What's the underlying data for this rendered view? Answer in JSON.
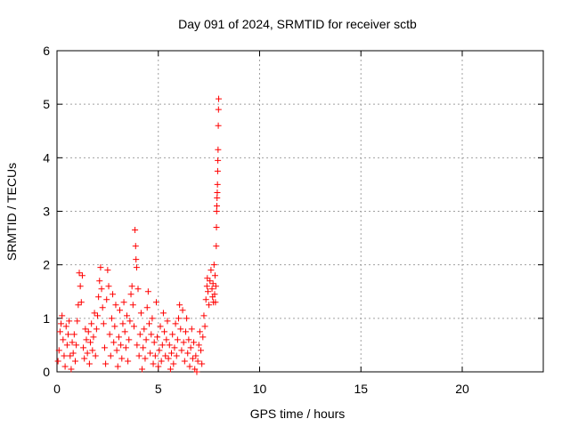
{
  "chart_data": {
    "type": "scatter",
    "title": "Day 091 of 2024, SRMTID for receiver sctb",
    "xlabel": "GPS time / hours",
    "ylabel": "SRMTID / TECUs",
    "xlim": [
      0,
      24
    ],
    "ylim": [
      0,
      6
    ],
    "xticks": [
      0,
      5,
      10,
      15,
      20
    ],
    "yticks": [
      0,
      1,
      2,
      3,
      4,
      5,
      6
    ],
    "grid": true,
    "marker": "+",
    "marker_color": "#ff0000",
    "series": [
      {
        "name": "SRMTID",
        "points": [
          [
            0.05,
            0.2
          ],
          [
            0.1,
            0.4
          ],
          [
            0.15,
            0.75
          ],
          [
            0.2,
            0.9
          ],
          [
            0.25,
            1.05
          ],
          [
            0.3,
            0.6
          ],
          [
            0.35,
            0.3
          ],
          [
            0.4,
            0.1
          ],
          [
            0.45,
            0.85
          ],
          [
            0.5,
            0.5
          ],
          [
            0.55,
            0.7
          ],
          [
            0.6,
            0.95
          ],
          [
            0.65,
            0.3
          ],
          [
            0.7,
            0.05
          ],
          [
            0.75,
            0.55
          ],
          [
            0.8,
            0.35
          ],
          [
            0.85,
            0.7
          ],
          [
            0.9,
            0.2
          ],
          [
            0.95,
            0.5
          ],
          [
            1.0,
            0.95
          ],
          [
            1.05,
            1.25
          ],
          [
            1.1,
            1.85
          ],
          [
            1.15,
            1.6
          ],
          [
            1.2,
            1.3
          ],
          [
            1.25,
            1.8
          ],
          [
            1.3,
            0.45
          ],
          [
            1.35,
            0.25
          ],
          [
            1.4,
            0.8
          ],
          [
            1.45,
            0.6
          ],
          [
            1.5,
            0.35
          ],
          [
            1.55,
            0.75
          ],
          [
            1.6,
            0.15
          ],
          [
            1.65,
            0.55
          ],
          [
            1.7,
            0.9
          ],
          [
            1.75,
            0.4
          ],
          [
            1.8,
            0.65
          ],
          [
            1.85,
            1.1
          ],
          [
            1.9,
            0.3
          ],
          [
            1.95,
            0.8
          ],
          [
            2.0,
            1.05
          ],
          [
            2.05,
            1.4
          ],
          [
            2.1,
            1.7
          ],
          [
            2.15,
            1.95
          ],
          [
            2.2,
            1.55
          ],
          [
            2.25,
            1.2
          ],
          [
            2.3,
            0.9
          ],
          [
            2.35,
            0.45
          ],
          [
            2.4,
            0.15
          ],
          [
            2.45,
            1.35
          ],
          [
            2.5,
            1.9
          ],
          [
            2.55,
            1.6
          ],
          [
            2.6,
            0.7
          ],
          [
            2.65,
            0.3
          ],
          [
            2.7,
            1.0
          ],
          [
            2.75,
            1.45
          ],
          [
            2.8,
            0.55
          ],
          [
            2.85,
            0.85
          ],
          [
            2.9,
            1.25
          ],
          [
            2.95,
            0.4
          ],
          [
            3.0,
            0.1
          ],
          [
            3.05,
            0.65
          ],
          [
            3.1,
            1.15
          ],
          [
            3.15,
            0.5
          ],
          [
            3.2,
            0.25
          ],
          [
            3.25,
            0.9
          ],
          [
            3.3,
            1.3
          ],
          [
            3.35,
            0.75
          ],
          [
            3.4,
            0.45
          ],
          [
            3.45,
            1.05
          ],
          [
            3.5,
            0.2
          ],
          [
            3.55,
            0.6
          ],
          [
            3.6,
            0.95
          ],
          [
            3.65,
            1.45
          ],
          [
            3.7,
            1.6
          ],
          [
            3.75,
            1.25
          ],
          [
            3.8,
            0.85
          ],
          [
            3.85,
            2.65
          ],
          [
            3.88,
            2.35
          ],
          [
            3.9,
            2.1
          ],
          [
            3.93,
            1.95
          ],
          [
            3.95,
            0.5
          ],
          [
            4.0,
            1.55
          ],
          [
            4.05,
            0.3
          ],
          [
            4.1,
            0.7
          ],
          [
            4.15,
            1.1
          ],
          [
            4.2,
            0.05
          ],
          [
            4.25,
            0.45
          ],
          [
            4.3,
            0.8
          ],
          [
            4.35,
            0.25
          ],
          [
            4.4,
            0.6
          ],
          [
            4.45,
            1.2
          ],
          [
            4.5,
            1.5
          ],
          [
            4.55,
            0.9
          ],
          [
            4.6,
            0.35
          ],
          [
            4.65,
            0.7
          ],
          [
            4.7,
            1.0
          ],
          [
            4.75,
            0.15
          ],
          [
            4.8,
            0.55
          ],
          [
            4.85,
            0.3
          ],
          [
            4.9,
            1.3
          ],
          [
            4.95,
            0.65
          ],
          [
            5.0,
            0.1
          ],
          [
            5.05,
            0.4
          ],
          [
            5.1,
            0.85
          ],
          [
            5.15,
            0.2
          ],
          [
            5.2,
            0.5
          ],
          [
            5.25,
            1.1
          ],
          [
            5.3,
            0.75
          ],
          [
            5.35,
            0.3
          ],
          [
            5.4,
            0.6
          ],
          [
            5.45,
            0.95
          ],
          [
            5.5,
            0.25
          ],
          [
            5.55,
            0.5
          ],
          [
            5.6,
            0.05
          ],
          [
            5.65,
            0.35
          ],
          [
            5.7,
            0.7
          ],
          [
            5.75,
            0.15
          ],
          [
            5.8,
            0.45
          ],
          [
            5.85,
            0.9
          ],
          [
            5.9,
            0.3
          ],
          [
            5.95,
            0.6
          ],
          [
            6.0,
            1.0
          ],
          [
            6.05,
            1.25
          ],
          [
            6.1,
            0.8
          ],
          [
            6.15,
            0.4
          ],
          [
            6.2,
            1.15
          ],
          [
            6.25,
            0.55
          ],
          [
            6.3,
            0.2
          ],
          [
            6.35,
            0.75
          ],
          [
            6.4,
            1.0
          ],
          [
            6.45,
            0.35
          ],
          [
            6.5,
            0.6
          ],
          [
            6.55,
            0.1
          ],
          [
            6.6,
            0.45
          ],
          [
            6.65,
            0.8
          ],
          [
            6.7,
            0.25
          ],
          [
            6.75,
            0.55
          ],
          [
            6.8,
            0.05
          ],
          [
            6.85,
            0.3
          ],
          [
            6.9,
            0.0
          ],
          [
            6.95,
            0.2
          ],
          [
            7.0,
            0.5
          ],
          [
            7.05,
            0.75
          ],
          [
            7.1,
            0.4
          ],
          [
            7.15,
            0.15
          ],
          [
            7.2,
            0.65
          ],
          [
            7.25,
            1.05
          ],
          [
            7.3,
            0.85
          ],
          [
            7.35,
            1.35
          ],
          [
            7.4,
            1.6
          ],
          [
            7.42,
            1.75
          ],
          [
            7.45,
            1.5
          ],
          [
            7.5,
            1.25
          ],
          [
            7.55,
            1.7
          ],
          [
            7.6,
            1.9
          ],
          [
            7.65,
            1.55
          ],
          [
            7.68,
            1.4
          ],
          [
            7.7,
            1.65
          ],
          [
            7.72,
            1.3
          ],
          [
            7.75,
            2.0
          ],
          [
            7.78,
            1.45
          ],
          [
            7.8,
            1.8
          ],
          [
            7.82,
            1.3
          ],
          [
            7.84,
            1.6
          ],
          [
            7.86,
            2.35
          ],
          [
            7.87,
            2.7
          ],
          [
            7.88,
            3.0
          ],
          [
            7.89,
            3.1
          ],
          [
            7.9,
            3.25
          ],
          [
            7.91,
            3.35
          ],
          [
            7.92,
            3.5
          ],
          [
            7.93,
            3.75
          ],
          [
            7.94,
            3.95
          ],
          [
            7.95,
            4.15
          ],
          [
            7.96,
            4.6
          ],
          [
            7.97,
            4.9
          ],
          [
            7.98,
            5.1
          ]
        ]
      }
    ]
  }
}
